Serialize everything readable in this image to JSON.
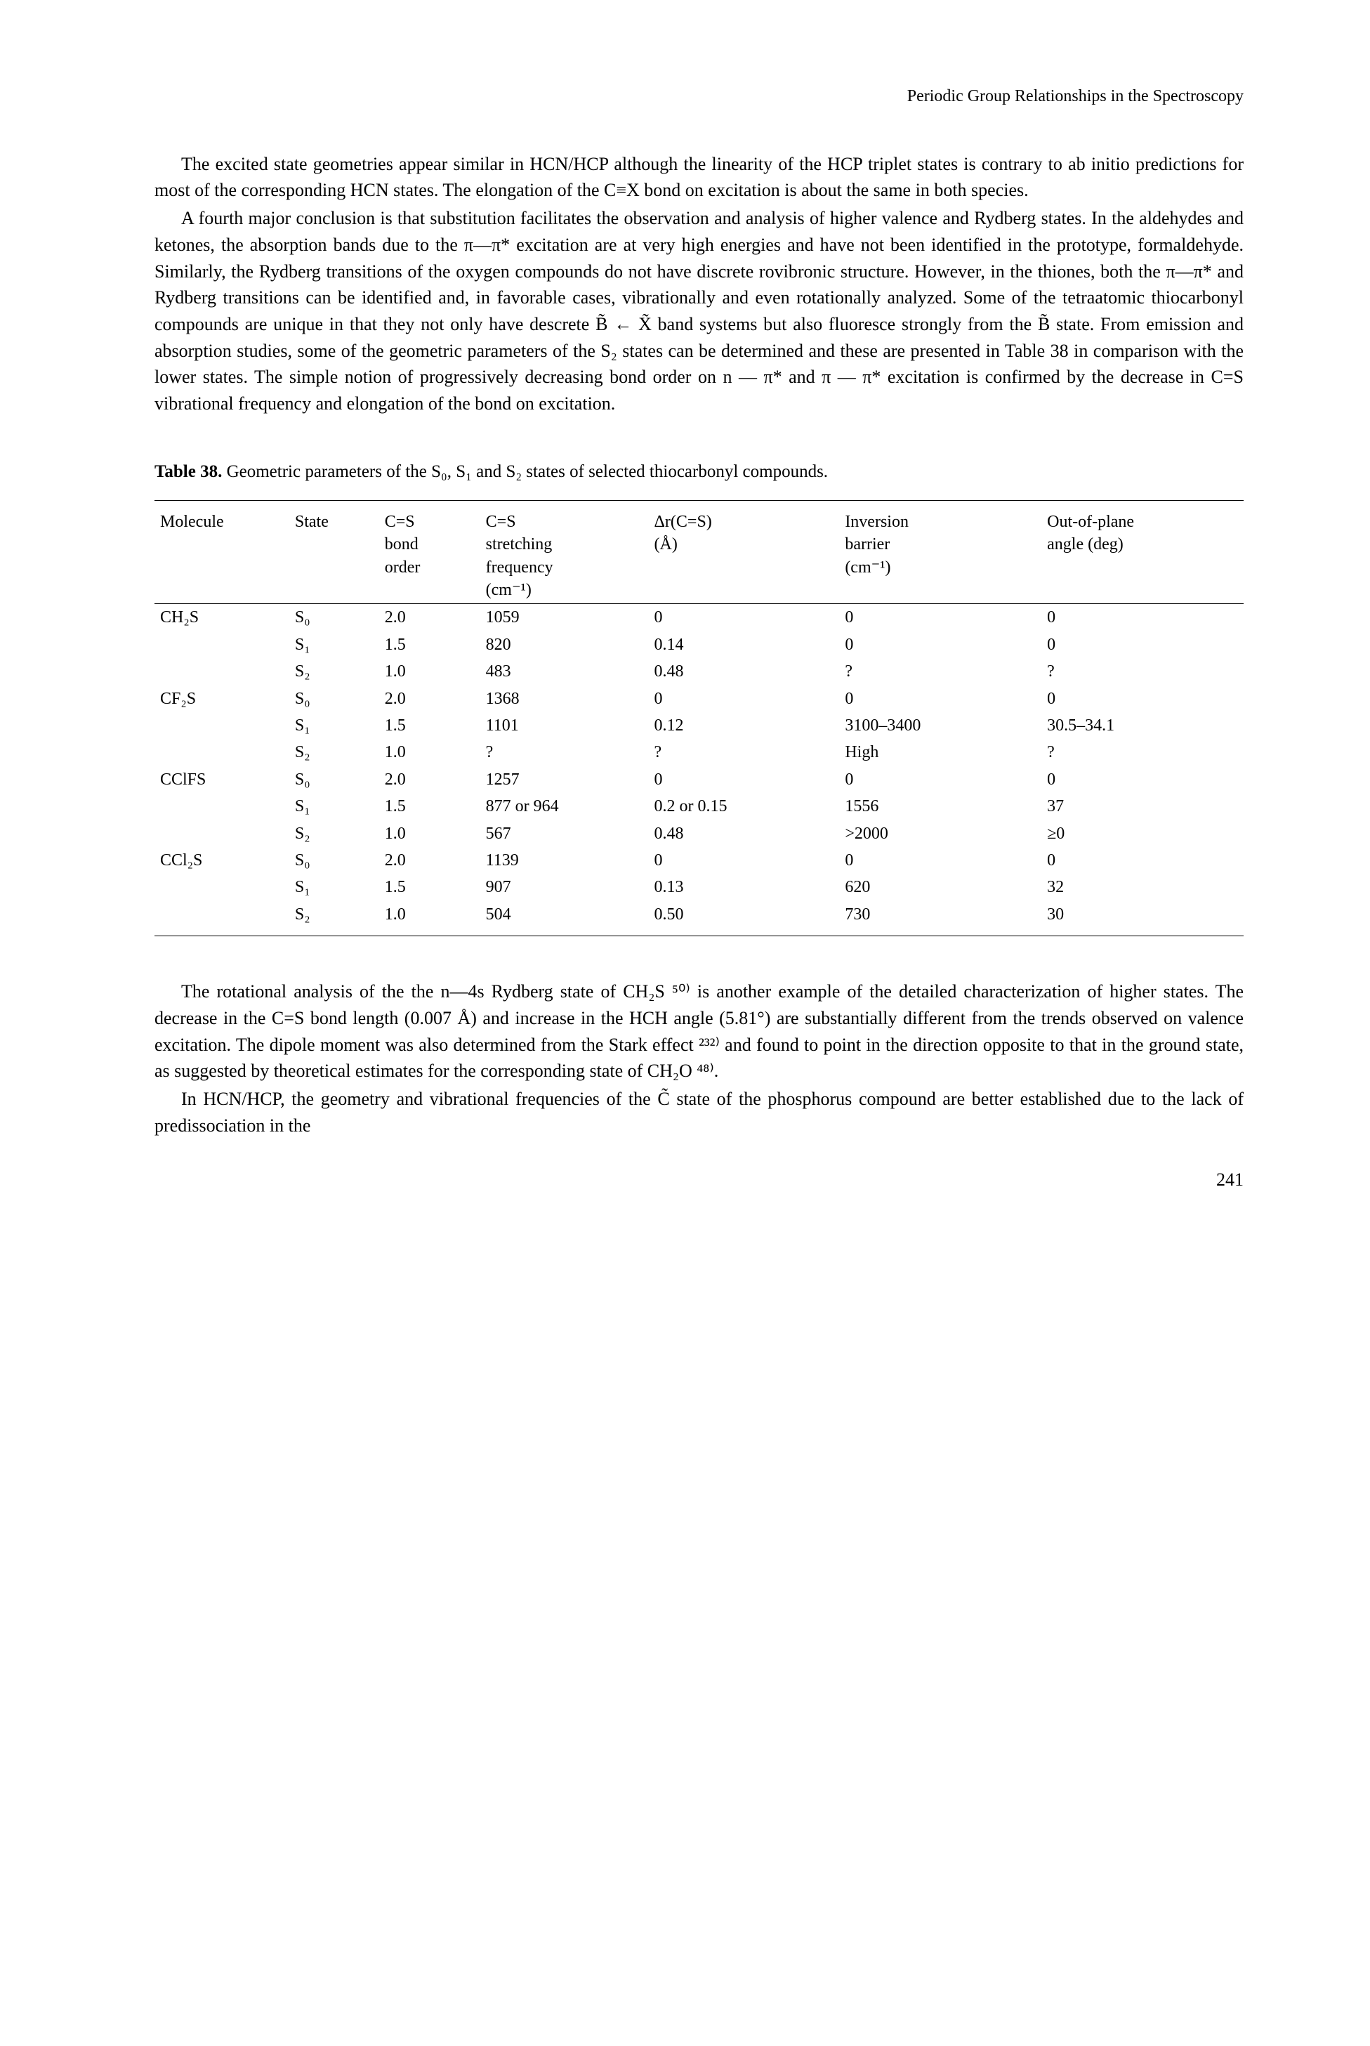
{
  "running_head": "Periodic Group Relationships in the Spectroscopy",
  "para1": "The excited state geometries appear similar in HCN/HCP although the linearity of the HCP triplet states is contrary to ab initio predictions for most of the corresponding HCN states. The elongation of the C≡X bond on excitation is about the same in both species.",
  "para2": "A fourth major conclusion is that substitution facilitates the observation and analysis of higher valence and Rydberg states. In the aldehydes and ketones, the absorption bands due to the π—π* excitation are at very high energies and have not been identified in the prototype, formaldehyde. Similarly, the Rydberg transitions of the oxygen compounds do not have discrete rovibronic structure. However, in the thiones, both the π—π* and Rydberg transitions can be identified and, in favorable cases, vibrationally and even rotationally analyzed. Some of the tetraatomic thiocarbonyl compounds are unique in that they not only have descrete B̃ ← X̃ band systems but also fluoresce strongly from the B̃ state. From emission and absorption studies, some of the geometric parameters of the S₂ states can be determined and these are presented in Table 38 in comparison with the lower states. The simple notion of progressively decreasing bond order on n — π* and π — π* excitation is confirmed by the decrease in C=S vibrational frequency and elongation of the bond on excitation.",
  "table_caption_prefix": "Table 38.",
  "table_caption_text": " Geometric parameters of the S₀, S₁ and S₂ states of selected thiocarbonyl compounds.",
  "table": {
    "headers": {
      "c1": "Molecule",
      "c2": "State",
      "c3a": "C=S",
      "c3b": "bond",
      "c3c": "order",
      "c4a": "C=S",
      "c4b": "stretching",
      "c4c": "frequency",
      "c4d": "(cm⁻¹)",
      "c5a": "Δr(C=S)",
      "c5b": "(Å)",
      "c6a": "Inversion",
      "c6b": "barrier",
      "c6c": "(cm⁻¹)",
      "c7a": "Out-of-plane",
      "c7b": "angle (deg)"
    },
    "rows": [
      {
        "mol": "CH₂S",
        "state": "S₀",
        "order": "2.0",
        "freq": "1059",
        "dr": "0",
        "inv": "0",
        "oop": "0"
      },
      {
        "mol": "",
        "state": "S₁",
        "order": "1.5",
        "freq": "820",
        "dr": "0.14",
        "inv": "0",
        "oop": "0"
      },
      {
        "mol": "",
        "state": "S₂",
        "order": "1.0",
        "freq": "483",
        "dr": "0.48",
        "inv": "?",
        "oop": "?"
      },
      {
        "mol": "CF₂S",
        "state": "S₀",
        "order": "2.0",
        "freq": "1368",
        "dr": "0",
        "inv": "0",
        "oop": "0"
      },
      {
        "mol": "",
        "state": "S₁",
        "order": "1.5",
        "freq": "1101",
        "dr": "0.12",
        "inv": "3100–3400",
        "oop": "30.5–34.1"
      },
      {
        "mol": "",
        "state": "S₂",
        "order": "1.0",
        "freq": "?",
        "dr": "?",
        "inv": "High",
        "oop": "?"
      },
      {
        "mol": "CClFS",
        "state": "S₀",
        "order": "2.0",
        "freq": "1257",
        "dr": "0",
        "inv": "0",
        "oop": "0"
      },
      {
        "mol": "",
        "state": "S₁",
        "order": "1.5",
        "freq": "877 or 964",
        "dr": "0.2 or 0.15",
        "inv": "1556",
        "oop": "37"
      },
      {
        "mol": "",
        "state": "S₂",
        "order": "1.0",
        "freq": "567",
        "dr": "0.48",
        "inv": ">2000",
        "oop": "≥0"
      },
      {
        "mol": "CCl₂S",
        "state": "S₀",
        "order": "2.0",
        "freq": "1139",
        "dr": "0",
        "inv": "0",
        "oop": "0"
      },
      {
        "mol": "",
        "state": "S₁",
        "order": "1.5",
        "freq": "907",
        "dr": "0.13",
        "inv": "620",
        "oop": "32"
      },
      {
        "mol": "",
        "state": "S₂",
        "order": "1.0",
        "freq": "504",
        "dr": "0.50",
        "inv": "730",
        "oop": "30"
      }
    ]
  },
  "para3": "The rotational analysis of the the n—4s Rydberg state of CH₂S ⁵⁰⁾ is another example of the detailed characterization of higher states. The decrease in the C=S bond length (0.007 Å) and increase in the HCH angle (5.81°) are substantially different from the trends observed on valence excitation. The dipole moment was also determined from the Stark effect ²³²⁾ and found to point in the direction opposite to that in the ground state, as suggested by theoretical estimates for the corresponding state of CH₂O ⁴⁸⁾.",
  "para4": "In HCN/HCP, the geometry and vibrational frequencies of the C̃ state of the phosphorus compound are better established due to the lack of predissociation in the",
  "page_number": "241"
}
